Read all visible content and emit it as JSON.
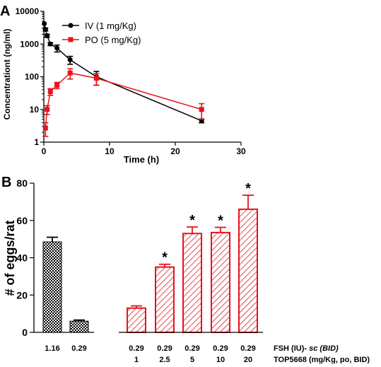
{
  "chart_data": [
    {
      "type": "line",
      "panel_label": "A",
      "xlabel": "Time (h)",
      "ylabel": "Concentrationt (ng/ml)",
      "xlim": [
        0,
        30
      ],
      "ylim": [
        1,
        10000
      ],
      "y_scale": "log",
      "x_ticks": [
        "0",
        "10",
        "20",
        "30"
      ],
      "y_ticks": [
        "1",
        "10",
        "100",
        "1000",
        "10000"
      ],
      "legend_position": "top-right",
      "series": [
        {
          "name": "IV (1 mg/Kg)",
          "color": "#000000",
          "marker": "circle",
          "x": [
            0.08,
            0.25,
            0.5,
            1,
            2,
            4,
            8,
            24
          ],
          "y": [
            4200,
            2800,
            1800,
            1000,
            750,
            330,
            100,
            4.5
          ],
          "err": [
            0,
            300,
            200,
            100,
            180,
            90,
            45,
            0.6
          ]
        },
        {
          "name": "PO (5 mg/Kg)",
          "color": "#e8121c",
          "marker": "square",
          "x": [
            0.25,
            0.5,
            1,
            2,
            4,
            8,
            24
          ],
          "y": [
            2.7,
            10,
            35,
            55,
            130,
            90,
            10
          ],
          "err": [
            1.2,
            3,
            8,
            12,
            45,
            35,
            5
          ]
        }
      ]
    },
    {
      "type": "bar",
      "panel_label": "B",
      "ylabel": "# of eggs/rat",
      "ylim": [
        0,
        80
      ],
      "y_ticks": [
        "0",
        "20",
        "40",
        "60",
        "80"
      ],
      "row1_label": "FSH (IU)- ",
      "row1_label_italic": "sc (BID)",
      "row2_label": "TOP5668 (mg/Kg, po, BID)",
      "bars": [
        {
          "fsh": "1.16",
          "top": "",
          "value": 48.5,
          "err": 2.5,
          "style": "check",
          "star": ""
        },
        {
          "fsh": "0.29",
          "top": "",
          "value": 6,
          "err": 0.6,
          "style": "check",
          "star": ""
        },
        {
          "fsh": "0.29",
          "top": "1",
          "value": 13,
          "err": 1.2,
          "style": "hatch",
          "star": ""
        },
        {
          "fsh": "0.29",
          "top": "2.5",
          "value": 35,
          "err": 1.5,
          "style": "hatch",
          "star": "*"
        },
        {
          "fsh": "0.29",
          "top": "5",
          "value": 53,
          "err": 3.5,
          "style": "hatch",
          "star": "*"
        },
        {
          "fsh": "0.29",
          "top": "10",
          "value": 53.5,
          "err": 2.8,
          "style": "hatch",
          "star": "*"
        },
        {
          "fsh": "0.29",
          "top": "20",
          "value": 66,
          "err": 7.5,
          "style": "hatch",
          "star": "*"
        }
      ]
    }
  ]
}
